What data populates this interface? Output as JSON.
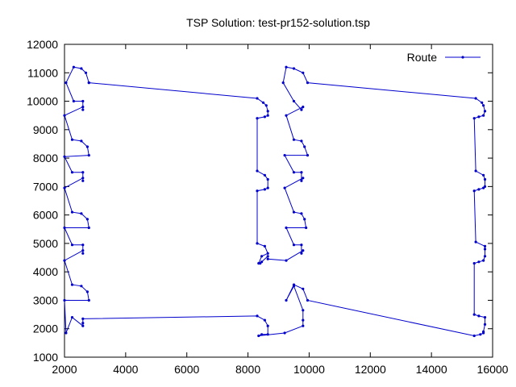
{
  "chart_data": {
    "type": "line",
    "title": "TSP Solution: test-pr152-solution.tsp",
    "xlabel": "",
    "ylabel": "",
    "xlim": [
      2000,
      16000
    ],
    "ylim": [
      1000,
      12000
    ],
    "xticks": [
      2000,
      4000,
      6000,
      8000,
      10000,
      12000,
      14000,
      16000
    ],
    "yticks": [
      1000,
      2000,
      3000,
      4000,
      5000,
      6000,
      7000,
      8000,
      9000,
      10000,
      11000,
      12000
    ],
    "x_tick_labels": [
      "2000",
      "4000",
      "6000",
      "8000",
      "10000",
      "12000",
      "14000",
      "16000"
    ],
    "y_tick_labels": [
      "1000",
      "2000",
      "3000",
      "4000",
      "5000",
      "6000",
      "7000",
      "8000",
      "9000",
      "10000",
      "11000",
      "12000"
    ],
    "legend_position": "top-right",
    "grid": false,
    "series": [
      {
        "name": "Route",
        "color": "#0000cc",
        "points": [
          [
            2800,
            10650
          ],
          [
            2700,
            11000
          ],
          [
            2550,
            11150
          ],
          [
            2300,
            11200
          ],
          [
            2050,
            10650
          ],
          [
            2300,
            10000
          ],
          [
            2600,
            10000
          ],
          [
            2600,
            9700
          ],
          [
            2600,
            9800
          ],
          [
            2000,
            9500
          ],
          [
            2250,
            8650
          ],
          [
            2550,
            8600
          ],
          [
            2750,
            8400
          ],
          [
            2800,
            8100
          ],
          [
            2000,
            8050
          ],
          [
            2250,
            7500
          ],
          [
            2600,
            7500
          ],
          [
            2600,
            7200
          ],
          [
            2600,
            7300
          ],
          [
            2000,
            6950
          ],
          [
            2250,
            6100
          ],
          [
            2550,
            6050
          ],
          [
            2750,
            5850
          ],
          [
            2800,
            5550
          ],
          [
            2000,
            5550
          ],
          [
            2250,
            4950
          ],
          [
            2600,
            4950
          ],
          [
            2600,
            4650
          ],
          [
            2600,
            4750
          ],
          [
            2000,
            4400
          ],
          [
            2250,
            3550
          ],
          [
            2550,
            3500
          ],
          [
            2750,
            3300
          ],
          [
            2800,
            3000
          ],
          [
            2000,
            3000
          ],
          [
            2050,
            1850
          ],
          [
            2250,
            2400
          ],
          [
            2600,
            2100
          ],
          [
            2600,
            2200
          ],
          [
            2600,
            2350
          ],
          [
            8300,
            2450
          ],
          [
            8550,
            2300
          ],
          [
            8650,
            2100
          ],
          [
            8650,
            1800
          ],
          [
            8450,
            1800
          ],
          [
            8350,
            1750
          ],
          [
            9200,
            1850
          ],
          [
            9800,
            2100
          ],
          [
            9800,
            2300
          ],
          [
            9800,
            2650
          ],
          [
            9500,
            3500
          ],
          [
            9250,
            3000
          ],
          [
            9500,
            3550
          ],
          [
            9800,
            3400
          ],
          [
            9950,
            3000
          ],
          [
            15400,
            1750
          ],
          [
            15600,
            1800
          ],
          [
            15700,
            1850
          ],
          [
            15700,
            1900
          ],
          [
            15750,
            2150
          ],
          [
            15750,
            2400
          ],
          [
            15550,
            2450
          ],
          [
            15400,
            2500
          ],
          [
            15400,
            4300
          ],
          [
            15550,
            4350
          ],
          [
            15700,
            4400
          ],
          [
            15750,
            4550
          ],
          [
            15750,
            4800
          ],
          [
            15750,
            4900
          ],
          [
            15450,
            5050
          ],
          [
            15400,
            6850
          ],
          [
            15550,
            6900
          ],
          [
            15700,
            6950
          ],
          [
            15750,
            7000
          ],
          [
            15750,
            7250
          ],
          [
            15700,
            7400
          ],
          [
            15450,
            7550
          ],
          [
            15400,
            9400
          ],
          [
            15550,
            9450
          ],
          [
            15700,
            9500
          ],
          [
            15750,
            9650
          ],
          [
            15700,
            9850
          ],
          [
            15650,
            9950
          ],
          [
            15450,
            10100
          ],
          [
            9950,
            10650
          ],
          [
            9800,
            11000
          ],
          [
            9500,
            11150
          ],
          [
            9250,
            11200
          ],
          [
            9150,
            10650
          ],
          [
            9500,
            10000
          ],
          [
            9750,
            9700
          ],
          [
            9800,
            9800
          ],
          [
            9250,
            9500
          ],
          [
            9500,
            8650
          ],
          [
            9750,
            8600
          ],
          [
            9850,
            8400
          ],
          [
            9950,
            8100
          ],
          [
            9200,
            8100
          ],
          [
            9500,
            7500
          ],
          [
            9750,
            7500
          ],
          [
            9750,
            7200
          ],
          [
            9800,
            7300
          ],
          [
            9200,
            6950
          ],
          [
            9500,
            6100
          ],
          [
            9750,
            6050
          ],
          [
            9850,
            5850
          ],
          [
            9900,
            5550
          ],
          [
            9250,
            5550
          ],
          [
            9500,
            4950
          ],
          [
            9750,
            4950
          ],
          [
            9750,
            4650
          ],
          [
            9800,
            4750
          ],
          [
            9250,
            4400
          ],
          [
            8650,
            4450
          ],
          [
            8650,
            4550
          ],
          [
            8450,
            4350
          ],
          [
            8400,
            4300
          ],
          [
            8350,
            4300
          ],
          [
            8450,
            4550
          ],
          [
            8650,
            4650
          ],
          [
            8550,
            4900
          ],
          [
            8300,
            5000
          ],
          [
            8300,
            6850
          ],
          [
            8550,
            6900
          ],
          [
            8650,
            6950
          ],
          [
            8650,
            7250
          ],
          [
            8550,
            7400
          ],
          [
            8300,
            7550
          ],
          [
            8300,
            9400
          ],
          [
            8550,
            9450
          ],
          [
            8650,
            9500
          ],
          [
            8650,
            9650
          ],
          [
            8600,
            9850
          ],
          [
            8500,
            9950
          ],
          [
            8300,
            10100
          ],
          [
            2800,
            10650
          ]
        ]
      }
    ]
  }
}
